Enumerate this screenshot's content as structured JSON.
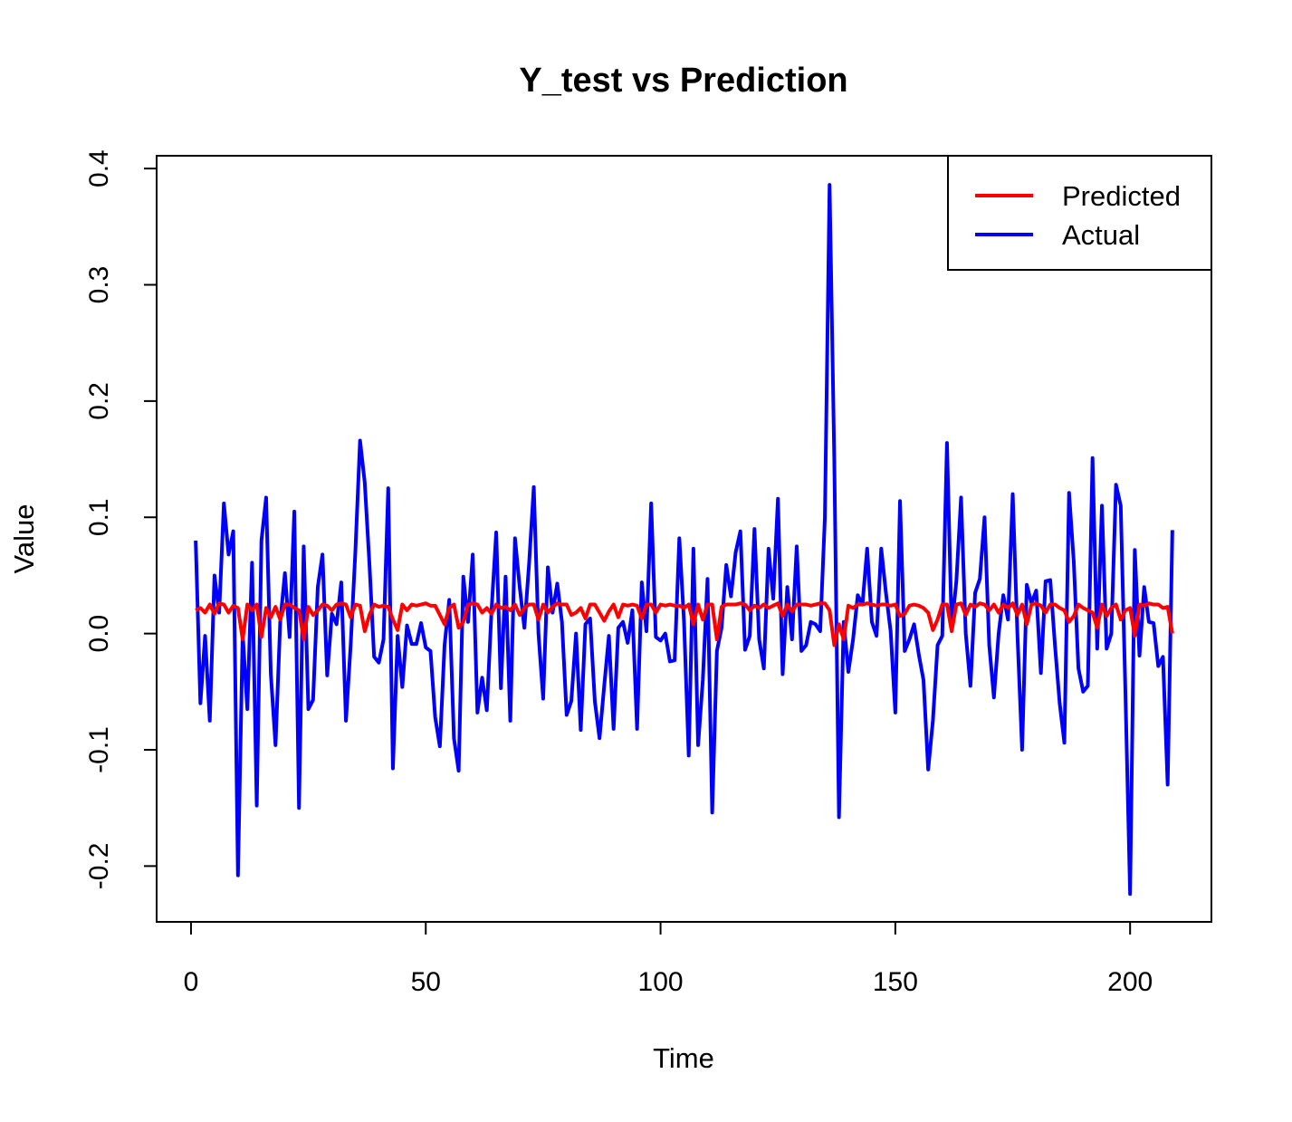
{
  "chart_data": {
    "type": "line",
    "title": "Y_test vs Prediction",
    "x_label": "Time",
    "y_label": "Value",
    "legend": "topright",
    "x": [
      1,
      2,
      3,
      4,
      5,
      6,
      7,
      8,
      9,
      10,
      11,
      12,
      13,
      14,
      15,
      16,
      17,
      18,
      19,
      20,
      21,
      22,
      23,
      24,
      25,
      26,
      27,
      28,
      29,
      30,
      31,
      32,
      33,
      34,
      35,
      36,
      37,
      38,
      39,
      40,
      41,
      42,
      43,
      44,
      45,
      46,
      47,
      48,
      49,
      50,
      51,
      52,
      53,
      54,
      55,
      56,
      57,
      58,
      59,
      60,
      61,
      62,
      63,
      64,
      65,
      66,
      67,
      68,
      69,
      70,
      71,
      72,
      73,
      74,
      75,
      76,
      77,
      78,
      79,
      80,
      81,
      82,
      83,
      84,
      85,
      86,
      87,
      88,
      89,
      90,
      91,
      92,
      93,
      94,
      95,
      96,
      97,
      98,
      99,
      100,
      101,
      102,
      103,
      104,
      105,
      106,
      107,
      108,
      109,
      110,
      111,
      112,
      113,
      114,
      115,
      116,
      117,
      118,
      119,
      120,
      121,
      122,
      123,
      124,
      125,
      126,
      127,
      128,
      129,
      130,
      131,
      132,
      133,
      134,
      135,
      136,
      137,
      138,
      139,
      140,
      141,
      142,
      143,
      144,
      145,
      146,
      147,
      148,
      149,
      150,
      151,
      152,
      153,
      154,
      155,
      156,
      157,
      158,
      159,
      160,
      161,
      162,
      163,
      164,
      165,
      166,
      167,
      168,
      169,
      170,
      171,
      172,
      173,
      174,
      175,
      176,
      177,
      178,
      179,
      180,
      181,
      182,
      183,
      184,
      185,
      186,
      187,
      188,
      189,
      190,
      191,
      192,
      193,
      194,
      195,
      196,
      197,
      198,
      199,
      200,
      201,
      202,
      203,
      204,
      205,
      206,
      207,
      208,
      209
    ],
    "series": [
      {
        "name": "Predicted",
        "color": "#ff0000",
        "values": [
          0.02,
          0.022,
          0.018,
          0.025,
          0.017,
          0.026,
          0.025,
          0.018,
          0.024,
          0.022,
          -0.005,
          0.025,
          0.02,
          0.025,
          -0.003,
          0.022,
          0.014,
          0.023,
          0.012,
          0.025,
          0.025,
          0.022,
          0.02,
          -0.005,
          0.023,
          0.016,
          0.02,
          0.025,
          0.024,
          0.02,
          0.025,
          0.026,
          0.025,
          0.014,
          0.025,
          0.024,
          0.002,
          0.016,
          0.025,
          0.023,
          0.024,
          0.023,
          0.012,
          0.003,
          0.025,
          0.02,
          0.025,
          0.024,
          0.025,
          0.026,
          0.024,
          0.024,
          0.016,
          0.008,
          0.022,
          0.025,
          0.005,
          0.01,
          0.025,
          0.026,
          0.025,
          0.018,
          0.022,
          0.017,
          0.025,
          0.022,
          0.023,
          0.02,
          0.025,
          0.016,
          0.022,
          0.025,
          0.025,
          0.012,
          0.025,
          0.018,
          0.023,
          0.026,
          0.025,
          0.025,
          0.016,
          0.018,
          0.022,
          0.013,
          0.025,
          0.025,
          0.018,
          0.011,
          0.019,
          0.025,
          0.014,
          0.025,
          0.024,
          0.025,
          0.024,
          0.013,
          0.025,
          0.025,
          0.018,
          0.025,
          0.024,
          0.025,
          0.024,
          0.024,
          0.022,
          0.025,
          0.008,
          0.025,
          0.012,
          0.025,
          0.025,
          -0.005,
          0.023,
          0.025,
          0.025,
          0.025,
          0.026,
          0.025,
          0.02,
          0.024,
          0.022,
          0.025,
          0.022,
          0.024,
          0.026,
          0.015,
          0.025,
          0.019,
          0.025,
          0.025,
          0.025,
          0.024,
          0.025,
          0.026,
          0.026,
          0.02,
          -0.01,
          0.008,
          -0.005,
          0.024,
          0.022,
          0.025,
          0.025,
          0.026,
          0.025,
          0.024,
          0.025,
          0.025,
          0.024,
          0.025,
          0.015,
          0.017,
          0.024,
          0.025,
          0.024,
          0.022,
          0.018,
          0.003,
          0.012,
          0.025,
          0.025,
          0.002,
          0.025,
          0.026,
          0.016,
          0.025,
          0.023,
          0.026,
          0.025,
          0.02,
          0.025,
          0.018,
          0.025,
          0.022,
          0.026,
          0.016,
          0.025,
          0.008,
          0.025,
          0.026,
          0.024,
          0.018,
          0.025,
          0.025,
          0.022,
          0.02,
          0.01,
          0.015,
          0.025,
          0.022,
          0.02,
          0.018,
          0.005,
          0.025,
          0.015,
          0.022,
          0.025,
          0.012,
          0.02,
          0.022,
          -0.002,
          0.025,
          0.024,
          0.026,
          0.025,
          0.025,
          0.022,
          0.023,
          0.0
        ]
      },
      {
        "name": "Actual",
        "color": "#0000ff",
        "values": [
          0.08,
          -0.06,
          -0.002,
          -0.075,
          0.05,
          0.018,
          0.112,
          0.068,
          0.088,
          -0.208,
          0.0,
          -0.065,
          0.061,
          -0.148,
          0.08,
          0.117,
          -0.035,
          -0.096,
          0.01,
          0.052,
          -0.003,
          0.105,
          -0.15,
          0.075,
          -0.065,
          -0.057,
          0.04,
          0.068,
          -0.036,
          0.017,
          0.008,
          0.044,
          -0.075,
          -0.01,
          0.07,
          0.166,
          0.13,
          0.06,
          -0.02,
          -0.025,
          -0.005,
          0.125,
          -0.116,
          -0.002,
          -0.046,
          0.007,
          -0.009,
          -0.009,
          0.009,
          -0.012,
          -0.015,
          -0.072,
          -0.097,
          -0.01,
          0.029,
          -0.09,
          -0.118,
          0.049,
          0.01,
          0.068,
          -0.068,
          -0.038,
          -0.066,
          0.02,
          0.087,
          -0.047,
          0.049,
          -0.075,
          0.082,
          0.04,
          0.005,
          0.06,
          0.126,
          0.0,
          -0.056,
          0.057,
          0.018,
          0.043,
          0.01,
          -0.07,
          -0.058,
          0.0,
          -0.083,
          0.008,
          0.013,
          -0.058,
          -0.09,
          -0.045,
          -0.002,
          -0.082,
          0.005,
          0.01,
          -0.008,
          0.02,
          -0.082,
          0.044,
          0.002,
          0.112,
          -0.003,
          -0.006,
          0.0,
          -0.024,
          -0.023,
          0.082,
          0.01,
          -0.105,
          0.073,
          -0.096,
          -0.04,
          0.047,
          -0.154,
          -0.015,
          0.005,
          0.059,
          0.032,
          0.07,
          0.088,
          -0.014,
          -0.002,
          0.09,
          -0.005,
          -0.03,
          0.073,
          0.03,
          0.116,
          -0.035,
          0.04,
          -0.005,
          0.075,
          -0.015,
          -0.01,
          0.01,
          0.008,
          0.002,
          0.1,
          0.386,
          0.15,
          -0.158,
          0.01,
          -0.033,
          -0.005,
          0.033,
          0.025,
          0.073,
          0.01,
          -0.002,
          0.073,
          0.035,
          0.002,
          -0.068,
          0.114,
          -0.015,
          -0.005,
          0.008,
          -0.018,
          -0.04,
          -0.117,
          -0.075,
          -0.01,
          -0.002,
          0.164,
          0.005,
          0.045,
          0.117,
          0.0,
          -0.045,
          0.035,
          0.047,
          0.1,
          -0.01,
          -0.055,
          0.0,
          0.033,
          0.012,
          0.12,
          0.0,
          -0.1,
          0.042,
          0.026,
          0.037,
          -0.034,
          0.045,
          0.046,
          -0.01,
          -0.06,
          -0.094,
          0.121,
          0.062,
          -0.03,
          -0.05,
          -0.045,
          0.151,
          -0.013,
          0.11,
          -0.013,
          0.0,
          0.128,
          0.11,
          -0.05,
          -0.224,
          0.072,
          -0.019,
          0.04,
          0.01,
          0.009,
          -0.028,
          -0.02,
          -0.13,
          0.089
        ]
      }
    ],
    "xlim": [
      -7.32,
      217.32
    ],
    "ylim": [
      -0.248,
      0.411
    ],
    "xticks": [
      0,
      50,
      100,
      150,
      200
    ],
    "yticks": [
      -0.2,
      -0.1,
      {
        "value": 0,
        "label": "0.0"
      },
      0.1,
      0.2,
      0.3,
      0.4
    ]
  }
}
